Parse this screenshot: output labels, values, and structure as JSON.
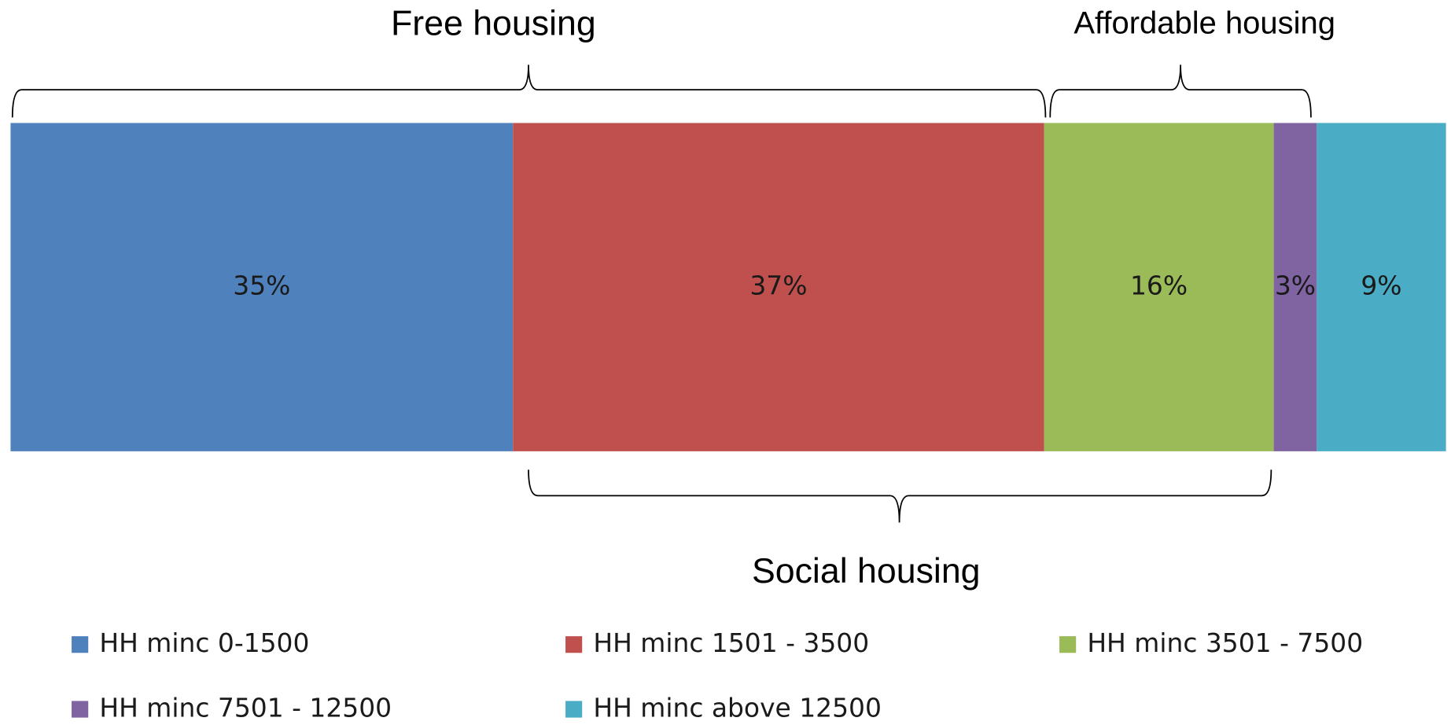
{
  "chart_data": {
    "type": "stacked-bar",
    "orientation": "horizontal",
    "series": [
      {
        "name": "HH minc 0-1500",
        "color": "#4f81bd",
        "values": [
          35
        ],
        "value_labels": [
          "35%"
        ]
      },
      {
        "name": "HH minc 1501 - 3500",
        "color": "#c0504d",
        "values": [
          37
        ],
        "value_labels": [
          "37%"
        ]
      },
      {
        "name": "HH minc 3501 - 7500",
        "color": "#9bbb59",
        "values": [
          16
        ],
        "value_labels": [
          "16%"
        ]
      },
      {
        "name": "HH minc 7501 - 12500",
        "color": "#8064a2",
        "values": [
          3
        ],
        "value_labels": [
          "3%"
        ]
      },
      {
        "name": "HH minc above 12500",
        "color": "#4bacc6",
        "values": [
          9
        ],
        "value_labels": [
          "9%"
        ]
      }
    ],
    "annotations": [
      {
        "text": "Free housing"
      },
      {
        "text": "Affordable housing"
      },
      {
        "text": "Social housing"
      }
    ],
    "legend": "bottom"
  }
}
